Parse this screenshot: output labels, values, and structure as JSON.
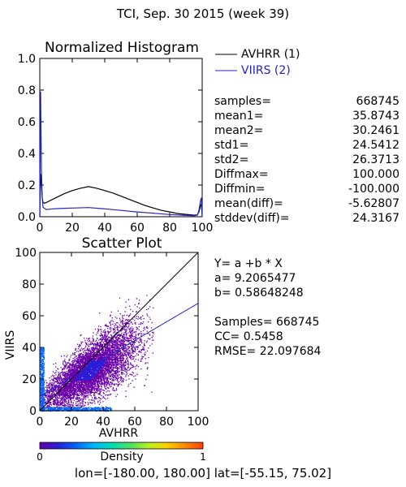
{
  "page_title": "TCI,  Sep. 30 2015 (week 39)",
  "histogram": {
    "title": "Normalized Histogram",
    "legend": [
      {
        "label": "AVHRR (1)",
        "color": "#000000"
      },
      {
        "label": "VIIRS (2)",
        "color": "#2222cc"
      }
    ]
  },
  "stats": [
    {
      "label": "samples=",
      "value": "668745"
    },
    {
      "label": "mean1=",
      "value": "35.8743"
    },
    {
      "label": "mean2=",
      "value": "30.2461"
    },
    {
      "label": "std1=",
      "value": "24.5412"
    },
    {
      "label": "std2=",
      "value": "26.3713"
    },
    {
      "label": "Diffmax=",
      "value": "100.000"
    },
    {
      "label": "Diffmin=",
      "value": "-100.000"
    },
    {
      "label": "mean(diff)=",
      "value": "-5.62807"
    },
    {
      "label": "stddev(diff)=",
      "value": "24.3167"
    }
  ],
  "scatter": {
    "title": "Scatter Plot",
    "regression": {
      "equation": "Y= a +b * X",
      "a_text": "a= 9.2065477",
      "b_text": "b= 0.58648248",
      "a": 9.2065477,
      "b": 0.58648248
    },
    "summary": [
      "Samples= 668745",
      "CC=  0.5458",
      "RMSE= 22.097684"
    ]
  },
  "colorbar": {
    "label": "Density",
    "min_label": "0",
    "max_label": "1",
    "colors": [
      "#6a00a8",
      "#2a1dd8",
      "#0066ff",
      "#00b8ff",
      "#00e0b0",
      "#4ee060",
      "#b8f020",
      "#ffd000",
      "#ff8a00",
      "#ff4000"
    ]
  },
  "footer": "lon=[-180.00, 180.00] lat=[-55.15, 75.02]",
  "chart_data": [
    {
      "type": "line",
      "title": "Normalized Histogram",
      "xlabel": "",
      "ylabel": "",
      "xlim": [
        0,
        100
      ],
      "ylim": [
        0,
        1.0
      ],
      "xticks": [
        "0",
        "20",
        "40",
        "60",
        "80",
        "100"
      ],
      "yticks": [
        "0.0",
        "0.2",
        "0.4",
        "0.6",
        "0.8",
        "1.0"
      ],
      "legend_position": "right-outside",
      "series": [
        {
          "name": "AVHRR (1)",
          "color": "#000000",
          "x": [
            0,
            0.5,
            1,
            1.5,
            2,
            3,
            5,
            10,
            15,
            20,
            25,
            30,
            35,
            40,
            45,
            50,
            55,
            60,
            65,
            70,
            75,
            80,
            85,
            90,
            95,
            97,
            98,
            99,
            99.5,
            100
          ],
          "y": [
            0.0,
            0.27,
            0.21,
            0.12,
            0.09,
            0.085,
            0.095,
            0.12,
            0.145,
            0.165,
            0.18,
            0.19,
            0.18,
            0.165,
            0.15,
            0.13,
            0.11,
            0.09,
            0.07,
            0.055,
            0.04,
            0.03,
            0.02,
            0.015,
            0.01,
            0.012,
            0.03,
            0.07,
            0.08,
            0.0
          ]
        },
        {
          "name": "VIIRS (2)",
          "color": "#2222cc",
          "x": [
            0,
            0.5,
            1,
            1.5,
            2,
            4,
            8,
            12,
            20,
            30,
            40,
            50,
            60,
            70,
            80,
            90,
            95,
            97,
            98,
            99,
            99.5,
            100
          ],
          "y": [
            0.0,
            0.79,
            0.3,
            0.12,
            0.06,
            0.045,
            0.05,
            0.052,
            0.055,
            0.058,
            0.05,
            0.04,
            0.03,
            0.022,
            0.014,
            0.008,
            0.006,
            0.01,
            0.04,
            0.1,
            0.12,
            0.0
          ]
        }
      ]
    },
    {
      "type": "scatter",
      "title": "Scatter Plot",
      "xlabel": "AVHRR",
      "ylabel": "VIIRS",
      "xlim": [
        0,
        100
      ],
      "ylim": [
        0,
        100
      ],
      "xticks": [
        "0",
        "20",
        "40",
        "60",
        "80",
        "100"
      ],
      "yticks": [
        "0",
        "20",
        "40",
        "60",
        "80",
        "100"
      ],
      "diagonal_line": true,
      "regression_line": {
        "a": 9.2065477,
        "b": 0.58648248
      },
      "density_cloud": {
        "x_center": 30,
        "y_center": 25,
        "samples": 668745
      }
    }
  ]
}
